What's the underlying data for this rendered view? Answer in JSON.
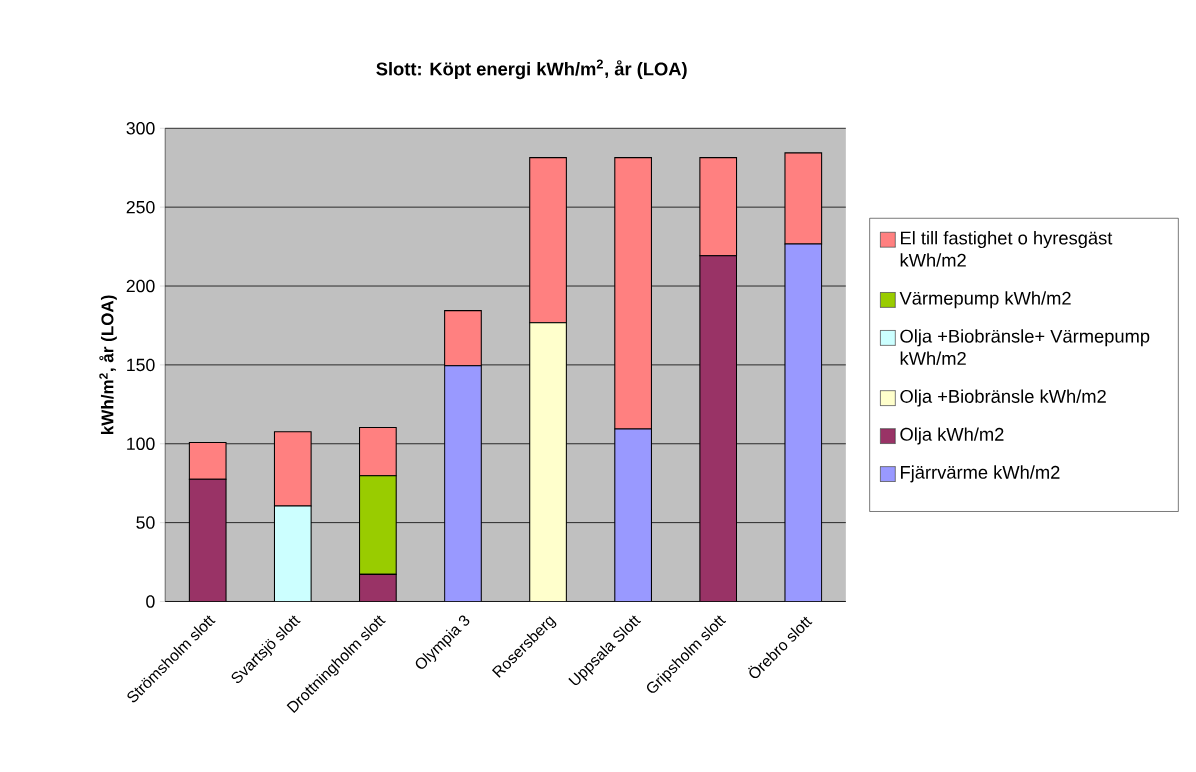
{
  "chart_data": {
    "type": "bar",
    "stacked": true,
    "title": "Slott: Köpt energi kWh/m$^{2}$, år (LOA)",
    "ylabel": "kWh/m$^{2}$, år (LOA)",
    "categories": [
      "Strömsholm slott",
      "Svartsjö slott",
      "Drottningholm slott",
      "Olympia 3",
      "Rosersberg",
      "Uppsala Slott",
      "Gripsholm slott",
      "Örebro slott"
    ],
    "series": [
      {
        "name": "Fjärrvärme kWh/m2",
        "color": "#9999ff",
        "values": [
          0,
          0,
          0,
          149.4,
          0,
          109.4,
          0,
          226.7
        ]
      },
      {
        "name": "Olja kWh/m2",
        "color": "#993366",
        "values": [
          77.5,
          0,
          17.2,
          0,
          0,
          0,
          219.2,
          0
        ]
      },
      {
        "name": "Olja +Biobränsle kWh/m2",
        "color": "#ffffcc",
        "values": [
          0,
          0,
          0,
          0,
          176.7,
          0,
          0,
          0
        ]
      },
      {
        "name": "Olja +Biobränsle+ Värmepump kWh/m2",
        "color": "#ccffff",
        "values": [
          0,
          60.6,
          0,
          0,
          0,
          0,
          0,
          0
        ]
      },
      {
        "name": "Värmepump kWh/m2",
        "color": "#99cc00",
        "values": [
          0,
          0,
          62.5,
          0,
          0,
          0,
          0,
          0
        ]
      },
      {
        "name": "El till fastighet o hyresgäst kWh/m2",
        "color": "#ff8080",
        "values": [
          23.3,
          47,
          30.6,
          35,
          104.7,
          172,
          62.2,
          57.7
        ]
      }
    ],
    "ylim": [
      0,
      300
    ],
    "yticks": [
      0,
      50,
      100,
      150,
      200,
      250,
      300
    ],
    "grid": "y",
    "legend": "right"
  }
}
